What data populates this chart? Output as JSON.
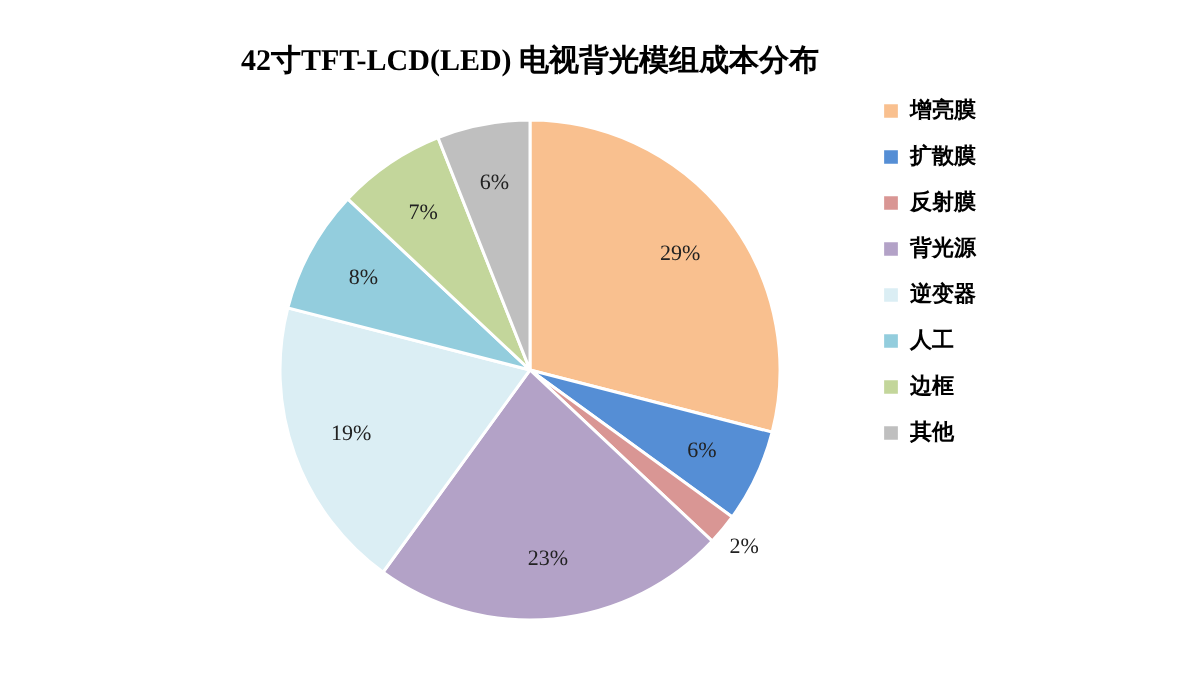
{
  "chart_data": {
    "type": "pie",
    "title": "42寸TFT-LCD(LED) 电视背光模组成本分布",
    "categories": [
      "增亮膜",
      "扩散膜",
      "反射膜",
      "背光源",
      "逆变器",
      "人工",
      "边框",
      "其他"
    ],
    "values": [
      29,
      6,
      2,
      23,
      19,
      8,
      7,
      6
    ],
    "colors": [
      "#f9c08f",
      "#558ed5",
      "#d99694",
      "#b3a2c7",
      "#dbeef4",
      "#93cddd",
      "#c3d69b",
      "#bfbfbf"
    ],
    "value_labels": [
      "29%",
      "6%",
      "2%",
      "23%",
      "19%",
      "8%",
      "7%",
      "6%"
    ],
    "legend": "right"
  }
}
